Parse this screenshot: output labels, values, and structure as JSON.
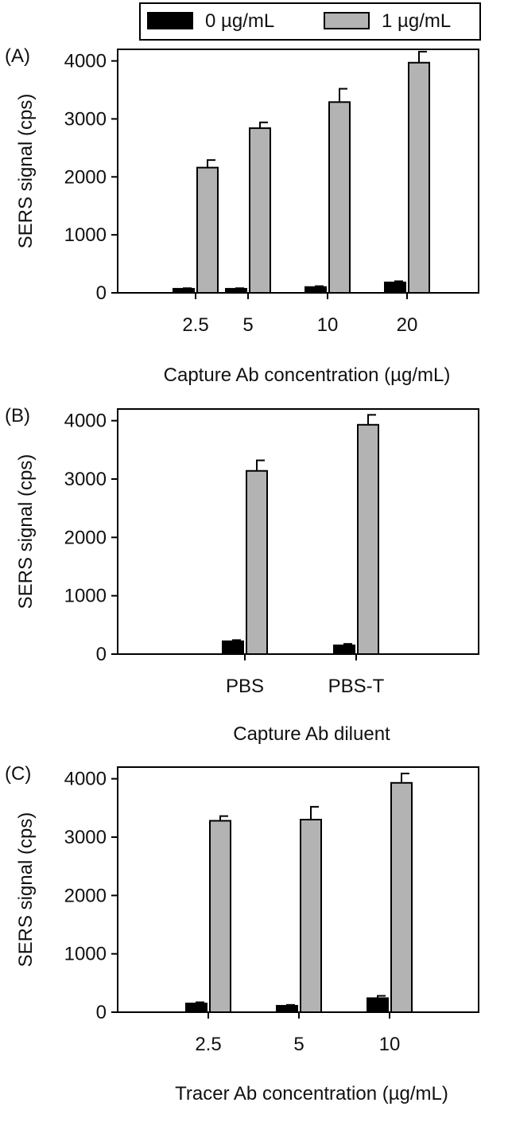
{
  "legend": {
    "items": [
      {
        "label": "0 µg/mL",
        "color": "#000000"
      },
      {
        "label": "1 µg/mL",
        "color": "#b3b3b3"
      }
    ]
  },
  "chart_data": [
    {
      "type": "bar",
      "panel_label": "(A)",
      "xlabel": "Capture Ab concentration (µg/mL)",
      "ylabel": "SERS signal (cps)",
      "ylim": [
        0,
        4200
      ],
      "yticks": [
        0,
        1000,
        2000,
        3000,
        4000
      ],
      "categories": [
        "2.5",
        "5",
        "10",
        "20"
      ],
      "series": [
        {
          "name": "0 µg/mL",
          "color": "#000000",
          "values": [
            70,
            70,
            100,
            180
          ],
          "errors": [
            10,
            10,
            15,
            20
          ]
        },
        {
          "name": "1 µg/mL",
          "color": "#b3b3b3",
          "values": [
            2160,
            2840,
            3290,
            3970
          ],
          "errors": [
            130,
            100,
            230,
            190
          ]
        }
      ]
    },
    {
      "type": "bar",
      "panel_label": "(B)",
      "xlabel": "Capture Ab diluent",
      "ylabel": "SERS signal (cps)",
      "ylim": [
        0,
        4200
      ],
      "yticks": [
        0,
        1000,
        2000,
        3000,
        4000
      ],
      "categories": [
        "PBS",
        "PBS-T"
      ],
      "series": [
        {
          "name": "0 µg/mL",
          "color": "#000000",
          "values": [
            220,
            150
          ],
          "errors": [
            20,
            25
          ]
        },
        {
          "name": "1 µg/mL",
          "color": "#b3b3b3",
          "values": [
            3140,
            3930
          ],
          "errors": [
            180,
            170
          ]
        }
      ]
    },
    {
      "type": "bar",
      "panel_label": "(C)",
      "xlabel": "Tracer Ab concentration (µg/mL)",
      "ylabel": "SERS signal (cps)",
      "ylim": [
        0,
        4200
      ],
      "yticks": [
        0,
        1000,
        2000,
        3000,
        4000
      ],
      "categories": [
        "2.5",
        "5",
        "10"
      ],
      "series": [
        {
          "name": "0 µg/mL",
          "color": "#000000",
          "values": [
            150,
            110,
            240
          ],
          "errors": [
            20,
            15,
            40
          ]
        },
        {
          "name": "1 µg/mL",
          "color": "#b3b3b3",
          "values": [
            3280,
            3300,
            3930
          ],
          "errors": [
            80,
            220,
            160
          ]
        }
      ]
    }
  ]
}
